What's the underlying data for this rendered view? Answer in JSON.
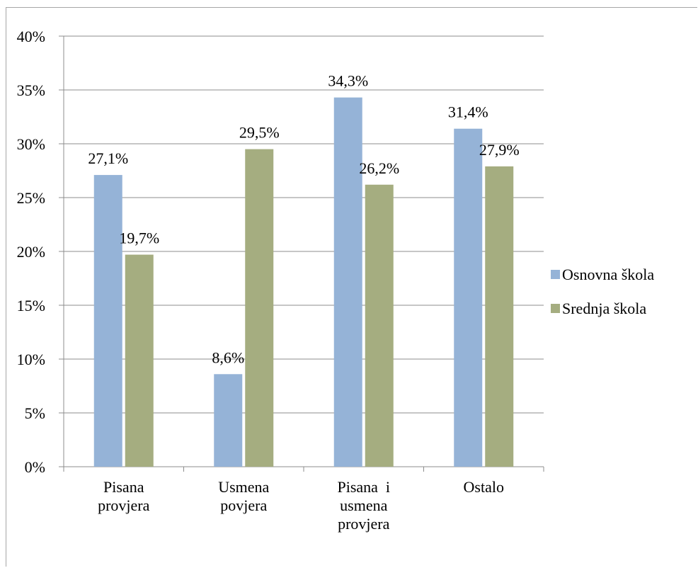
{
  "chart_data": {
    "type": "bar",
    "categories": [
      [
        "Pisana",
        "provjera"
      ],
      [
        "Usmena",
        "povjera"
      ],
      [
        "Pisana  i",
        "usmena",
        "provjera"
      ],
      [
        "Ostalo"
      ]
    ],
    "series": [
      {
        "name": "Osnovna škola",
        "color": "#95b3d7",
        "values": [
          27.1,
          8.6,
          34.3,
          31.4
        ],
        "labels": [
          "27,1%",
          "8,6%",
          "34,3%",
          "31,4%"
        ]
      },
      {
        "name": "Srednja škola",
        "color": "#a5ad80",
        "values": [
          19.7,
          29.5,
          26.2,
          27.9
        ],
        "labels": [
          "19,7%",
          "29,5%",
          "26,2%",
          "27,9%"
        ]
      }
    ],
    "ylim": [
      0,
      40
    ],
    "yticks": [
      0,
      5,
      10,
      15,
      20,
      25,
      30,
      35,
      40
    ],
    "ytick_labels": [
      "0%",
      "5%",
      "10%",
      "15%",
      "20%",
      "25%",
      "30%",
      "35%",
      "40%"
    ],
    "title": "",
    "xlabel": "",
    "ylabel": "",
    "grid": true,
    "legend_position": "right",
    "gridline_color": "#8c8c8c",
    "axis_color": "#8c8c8c"
  }
}
